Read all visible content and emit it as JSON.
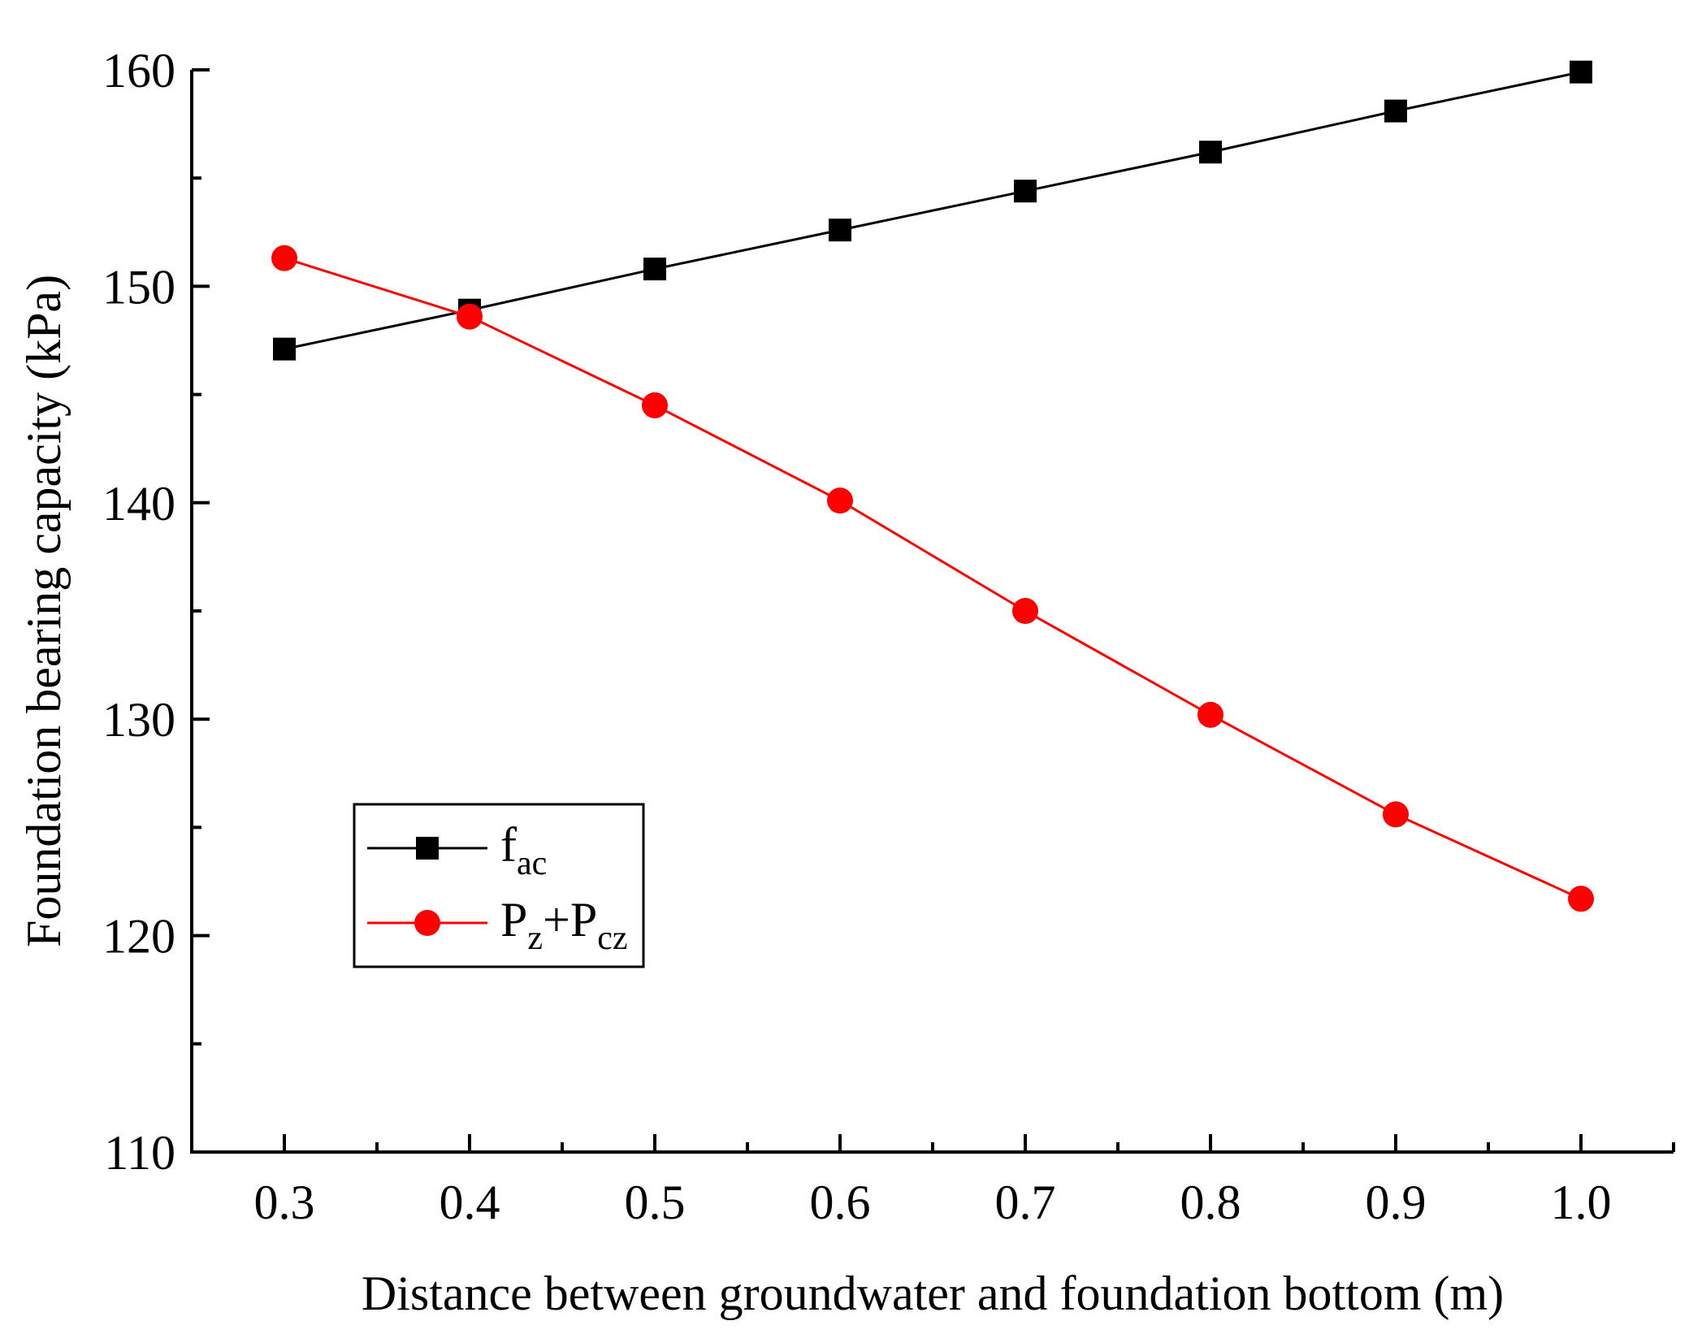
{
  "chart_data": {
    "type": "line",
    "title": "",
    "xlabel": "Distance between groundwater and foundation bottom (m)",
    "ylabel": "Foundation bearing capacity (kPa)",
    "xlim": [
      0.25,
      1.05
    ],
    "ylim": [
      110,
      160
    ],
    "x": [
      0.3,
      0.4,
      0.5,
      0.6,
      0.7,
      0.8,
      0.9,
      1.0
    ],
    "x_ticks": [
      0.3,
      0.4,
      0.5,
      0.6,
      0.7,
      0.8,
      0.9,
      1.0
    ],
    "x_tick_labels": [
      "0.3",
      "0.4",
      "0.5",
      "0.6",
      "0.7",
      "0.8",
      "0.9",
      "1.0"
    ],
    "y_ticks": [
      110,
      120,
      130,
      140,
      150,
      160
    ],
    "y_tick_labels": [
      "110",
      "120",
      "130",
      "140",
      "150",
      "160"
    ],
    "grid": false,
    "legend_position": "middle-left",
    "series": [
      {
        "name": "fac",
        "label_main": "f",
        "label_sub": "ac",
        "color": "#000000",
        "marker": "square",
        "values": [
          147.1,
          148.9,
          150.8,
          152.6,
          154.4,
          156.2,
          158.1,
          159.9
        ]
      },
      {
        "name": "Pz+Pcz",
        "label_main": "P",
        "label_sub": "z",
        "label_mid": "+P",
        "label_sub2": "cz",
        "color": "#ff0000",
        "marker": "circle",
        "values": [
          151.3,
          148.6,
          144.5,
          140.1,
          135.0,
          130.2,
          125.6,
          121.7
        ]
      }
    ]
  }
}
